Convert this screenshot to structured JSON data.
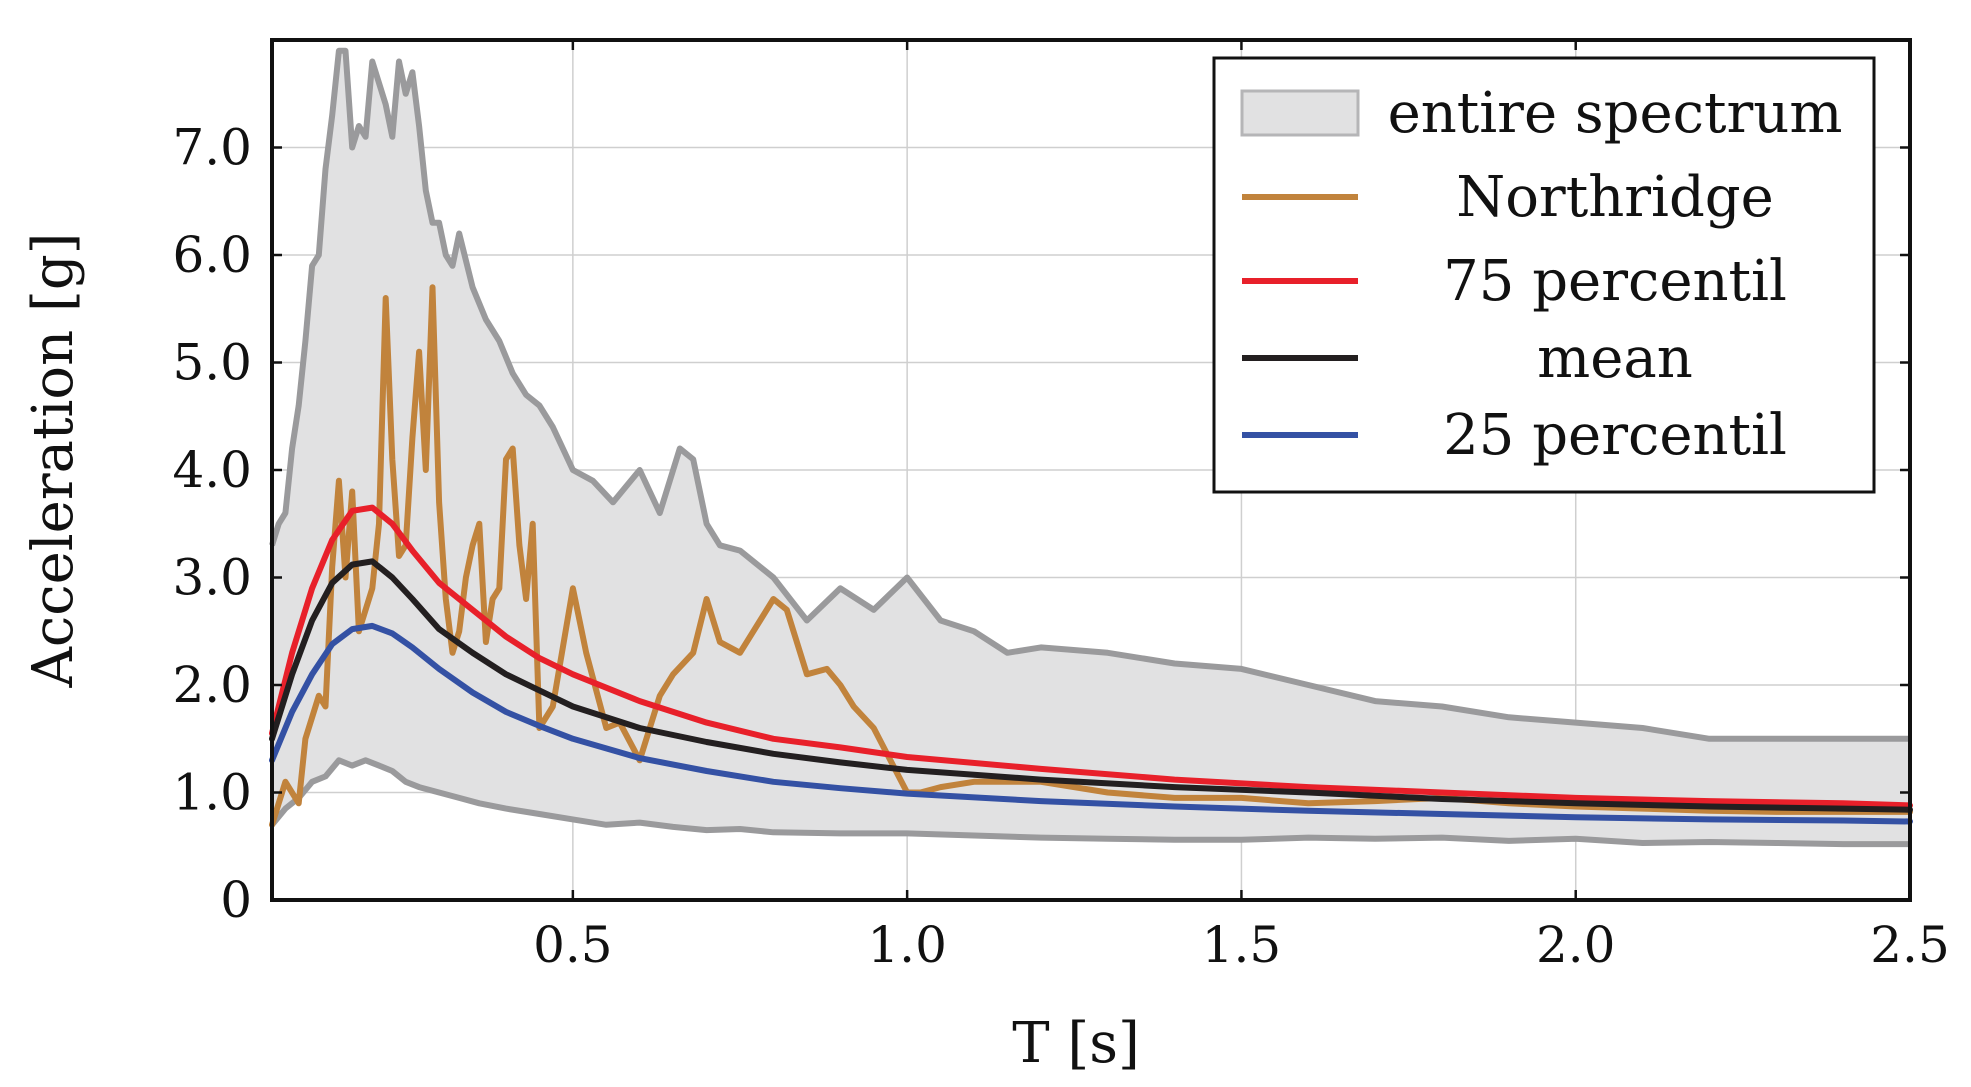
{
  "chart_data": {
    "type": "line",
    "title": "",
    "xlabel": "T [s]",
    "ylabel": "Acceleration [g]",
    "xlim": [
      0.05,
      2.5
    ],
    "ylim": [
      0,
      8.0
    ],
    "xticks": [
      0.5,
      1.0,
      1.5,
      2.0,
      2.5
    ],
    "xtick_labels": [
      "0.5",
      "1.0",
      "1.5",
      "2.0",
      "2.5"
    ],
    "yticks": [
      0,
      1.0,
      2.0,
      3.0,
      4.0,
      5.0,
      6.0,
      7.0
    ],
    "ytick_labels": [
      "0",
      "1.0",
      "2.0",
      "3.0",
      "4.0",
      "5.0",
      "6.0",
      "7.0"
    ],
    "grid": true,
    "legend_position": "top-right",
    "band": {
      "name": "entire spectrum",
      "fill_color": "#e1e1e2",
      "edge_color": "#9a9a9c",
      "upper": {
        "x": [
          0.05,
          0.06,
          0.07,
          0.08,
          0.09,
          0.1,
          0.11,
          0.12,
          0.13,
          0.14,
          0.15,
          0.16,
          0.17,
          0.18,
          0.19,
          0.2,
          0.21,
          0.22,
          0.23,
          0.24,
          0.25,
          0.26,
          0.27,
          0.28,
          0.29,
          0.3,
          0.31,
          0.32,
          0.33,
          0.35,
          0.37,
          0.39,
          0.41,
          0.43,
          0.45,
          0.47,
          0.5,
          0.53,
          0.56,
          0.6,
          0.63,
          0.66,
          0.68,
          0.7,
          0.72,
          0.75,
          0.78,
          0.8,
          0.85,
          0.9,
          0.95,
          1.0,
          1.05,
          1.1,
          1.15,
          1.2,
          1.3,
          1.4,
          1.5,
          1.6,
          1.7,
          1.8,
          1.9,
          2.0,
          2.1,
          2.2,
          2.3,
          2.4,
          2.5
        ],
        "y": [
          3.3,
          3.5,
          3.6,
          4.2,
          4.6,
          5.2,
          5.9,
          6.0,
          6.8,
          7.3,
          7.9,
          7.9,
          7.0,
          7.2,
          7.1,
          7.8,
          7.6,
          7.4,
          7.1,
          7.8,
          7.5,
          7.7,
          7.2,
          6.6,
          6.3,
          6.3,
          6.0,
          5.9,
          6.2,
          5.7,
          5.4,
          5.2,
          4.9,
          4.7,
          4.6,
          4.4,
          4.0,
          3.9,
          3.7,
          4.0,
          3.6,
          4.2,
          4.1,
          3.5,
          3.3,
          3.25,
          3.1,
          3.0,
          2.6,
          2.9,
          2.7,
          3.0,
          2.6,
          2.5,
          2.3,
          2.35,
          2.3,
          2.2,
          2.15,
          2.0,
          1.85,
          1.8,
          1.7,
          1.65,
          1.6,
          1.5,
          1.5,
          1.5,
          1.5
        ]
      },
      "lower": {
        "x": [
          0.05,
          0.07,
          0.09,
          0.11,
          0.13,
          0.15,
          0.17,
          0.19,
          0.21,
          0.23,
          0.25,
          0.27,
          0.3,
          0.33,
          0.36,
          0.4,
          0.45,
          0.5,
          0.55,
          0.6,
          0.65,
          0.7,
          0.75,
          0.8,
          0.9,
          1.0,
          1.1,
          1.2,
          1.3,
          1.4,
          1.5,
          1.6,
          1.7,
          1.8,
          1.9,
          2.0,
          2.1,
          2.2,
          2.3,
          2.4,
          2.5
        ],
        "y": [
          0.7,
          0.85,
          0.95,
          1.1,
          1.15,
          1.3,
          1.25,
          1.3,
          1.25,
          1.2,
          1.1,
          1.05,
          1.0,
          0.95,
          0.9,
          0.85,
          0.8,
          0.75,
          0.7,
          0.72,
          0.68,
          0.65,
          0.66,
          0.63,
          0.62,
          0.62,
          0.6,
          0.58,
          0.57,
          0.56,
          0.56,
          0.58,
          0.57,
          0.58,
          0.55,
          0.57,
          0.53,
          0.54,
          0.53,
          0.52,
          0.52
        ]
      }
    },
    "series": [
      {
        "name": "Northridge",
        "color": "#c1833c",
        "x": [
          0.05,
          0.07,
          0.09,
          0.1,
          0.12,
          0.13,
          0.14,
          0.15,
          0.16,
          0.17,
          0.18,
          0.2,
          0.21,
          0.22,
          0.23,
          0.24,
          0.25,
          0.26,
          0.27,
          0.28,
          0.29,
          0.3,
          0.31,
          0.32,
          0.33,
          0.34,
          0.35,
          0.36,
          0.37,
          0.38,
          0.39,
          0.4,
          0.41,
          0.42,
          0.43,
          0.44,
          0.45,
          0.47,
          0.5,
          0.52,
          0.55,
          0.57,
          0.6,
          0.63,
          0.65,
          0.68,
          0.7,
          0.72,
          0.75,
          0.78,
          0.8,
          0.82,
          0.85,
          0.88,
          0.9,
          0.92,
          0.95,
          1.0,
          1.02,
          1.05,
          1.1,
          1.2,
          1.3,
          1.4,
          1.5,
          1.6,
          1.7,
          1.8,
          1.9,
          2.0,
          2.1,
          2.2,
          2.3,
          2.4,
          2.5
        ],
        "y": [
          0.7,
          1.1,
          0.9,
          1.5,
          1.9,
          1.8,
          3.1,
          3.9,
          3.0,
          3.8,
          2.5,
          2.9,
          3.5,
          5.6,
          4.1,
          3.2,
          3.3,
          4.3,
          5.1,
          4.0,
          5.7,
          3.7,
          2.8,
          2.3,
          2.5,
          3.0,
          3.3,
          3.5,
          2.4,
          2.8,
          2.9,
          4.1,
          4.2,
          3.3,
          2.8,
          3.5,
          1.6,
          1.8,
          2.9,
          2.3,
          1.6,
          1.65,
          1.3,
          1.9,
          2.1,
          2.3,
          2.8,
          2.4,
          2.3,
          2.6,
          2.8,
          2.7,
          2.1,
          2.15,
          2.0,
          1.8,
          1.6,
          1.0,
          1.0,
          1.05,
          1.1,
          1.1,
          1.0,
          0.95,
          0.95,
          0.9,
          0.92,
          0.95,
          0.9,
          0.87,
          0.85,
          0.83,
          0.82,
          0.82,
          0.82
        ]
      },
      {
        "name": "75 percentil",
        "color": "#e8202a",
        "x": [
          0.05,
          0.08,
          0.11,
          0.14,
          0.17,
          0.2,
          0.23,
          0.26,
          0.3,
          0.35,
          0.4,
          0.45,
          0.5,
          0.6,
          0.7,
          0.8,
          0.9,
          1.0,
          1.2,
          1.4,
          1.6,
          1.8,
          2.0,
          2.2,
          2.4,
          2.5
        ],
        "y": [
          1.55,
          2.3,
          2.9,
          3.35,
          3.62,
          3.65,
          3.5,
          3.25,
          2.95,
          2.7,
          2.45,
          2.25,
          2.1,
          1.85,
          1.65,
          1.5,
          1.42,
          1.33,
          1.22,
          1.12,
          1.05,
          1.0,
          0.95,
          0.92,
          0.9,
          0.88
        ]
      },
      {
        "name": "mean",
        "color": "#231f20",
        "x": [
          0.05,
          0.08,
          0.11,
          0.14,
          0.17,
          0.2,
          0.23,
          0.26,
          0.3,
          0.35,
          0.4,
          0.45,
          0.5,
          0.6,
          0.7,
          0.8,
          0.9,
          1.0,
          1.2,
          1.4,
          1.6,
          1.8,
          2.0,
          2.2,
          2.4,
          2.5
        ],
        "y": [
          1.5,
          2.1,
          2.6,
          2.95,
          3.12,
          3.15,
          3.0,
          2.8,
          2.52,
          2.3,
          2.1,
          1.95,
          1.8,
          1.6,
          1.47,
          1.36,
          1.28,
          1.21,
          1.12,
          1.05,
          1.0,
          0.94,
          0.9,
          0.87,
          0.85,
          0.84
        ]
      },
      {
        "name": "25 percentil",
        "color": "#3451a4",
        "x": [
          0.05,
          0.08,
          0.11,
          0.14,
          0.17,
          0.2,
          0.23,
          0.26,
          0.3,
          0.35,
          0.4,
          0.45,
          0.5,
          0.6,
          0.7,
          0.8,
          0.9,
          1.0,
          1.2,
          1.4,
          1.6,
          1.8,
          2.0,
          2.2,
          2.4,
          2.5
        ],
        "y": [
          1.3,
          1.75,
          2.1,
          2.38,
          2.52,
          2.55,
          2.48,
          2.35,
          2.15,
          1.93,
          1.75,
          1.62,
          1.5,
          1.32,
          1.2,
          1.1,
          1.04,
          0.99,
          0.92,
          0.87,
          0.83,
          0.8,
          0.77,
          0.75,
          0.74,
          0.73
        ]
      }
    ],
    "legend": [
      {
        "label": "entire spectrum",
        "kind": "patch",
        "color": "#e1e1e2",
        "edge": "#b5b5b7"
      },
      {
        "label": "Northridge",
        "kind": "line",
        "color": "#c1833c"
      },
      {
        "label": "75 percentil",
        "kind": "line",
        "color": "#e8202a"
      },
      {
        "label": "mean",
        "kind": "line",
        "color": "#231f20"
      },
      {
        "label": "25 percentil",
        "kind": "line",
        "color": "#3451a4"
      }
    ]
  }
}
